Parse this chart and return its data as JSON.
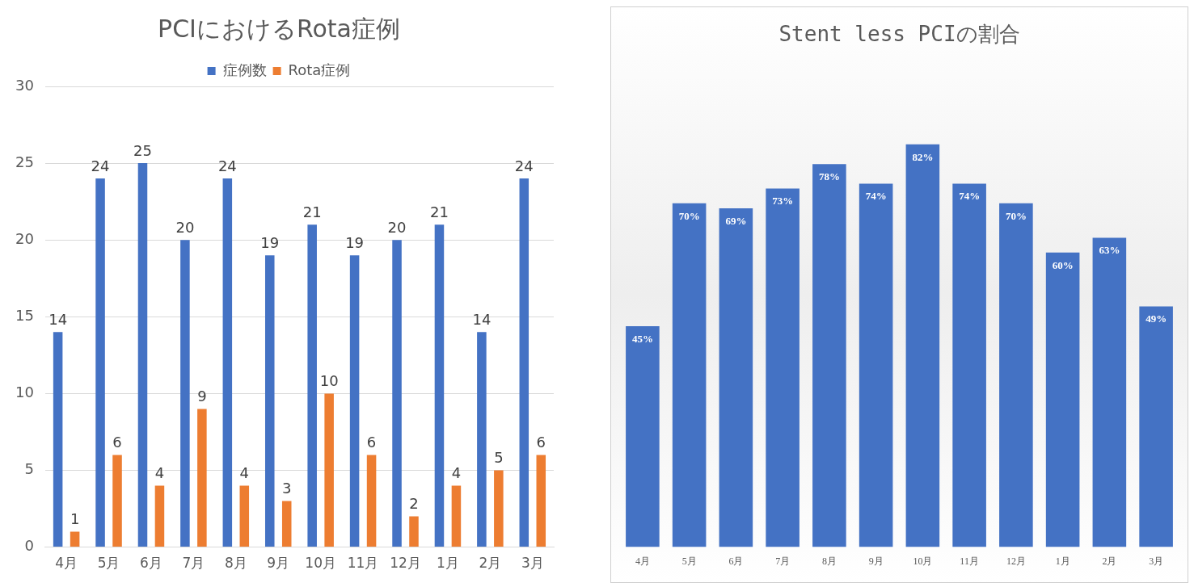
{
  "chart_data": [
    {
      "type": "bar",
      "title": "PCIにおけるRota症例",
      "categories": [
        "4月",
        "5月",
        "6月",
        "7月",
        "8月",
        "9月",
        "10月",
        "11月",
        "12月",
        "1月",
        "2月",
        "3月"
      ],
      "series": [
        {
          "name": "症例数",
          "color": "#4472c4",
          "values": [
            14,
            24,
            25,
            20,
            24,
            19,
            21,
            19,
            20,
            21,
            14,
            24
          ]
        },
        {
          "name": "Rota症例",
          "color": "#ed7d31",
          "values": [
            1,
            6,
            4,
            9,
            4,
            3,
            10,
            6,
            2,
            4,
            5,
            6
          ]
        }
      ],
      "ylim": [
        0,
        30
      ],
      "yticks": [
        0,
        5,
        10,
        15,
        20,
        25,
        30
      ],
      "grid": "y",
      "legend": "top",
      "data_labels": true
    },
    {
      "type": "bar",
      "title": "Stent less PCIの割合",
      "categories": [
        "4月",
        "5月",
        "6月",
        "7月",
        "8月",
        "9月",
        "10月",
        "11月",
        "12月",
        "1月",
        "2月",
        "3月"
      ],
      "values": [
        45,
        70,
        69,
        73,
        78,
        74,
        82,
        74,
        70,
        60,
        63,
        49
      ],
      "color": "#4472c4",
      "value_labels": [
        "45%",
        "70%",
        "69%",
        "73%",
        "78%",
        "74%",
        "82%",
        "74%",
        "70%",
        "60%",
        "63%",
        "49%"
      ],
      "tick_labels": "x"
    }
  ]
}
